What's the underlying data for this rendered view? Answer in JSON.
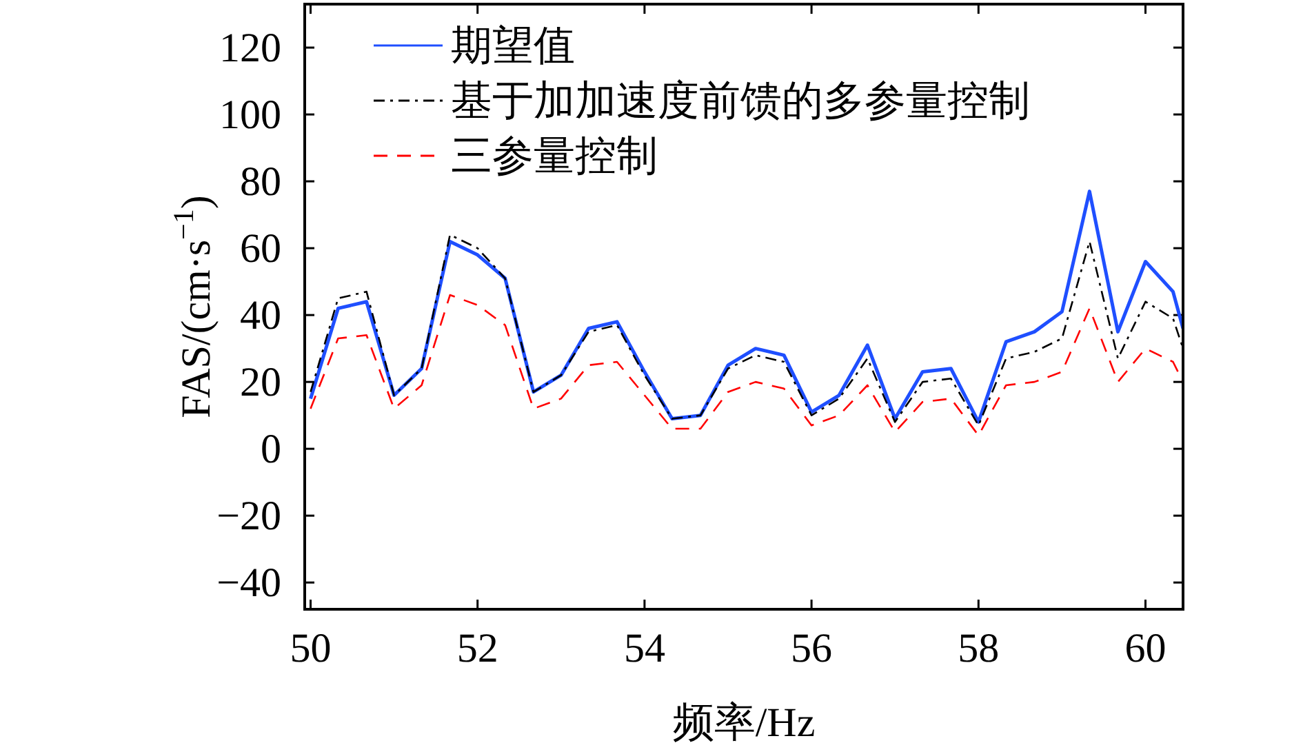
{
  "chart_data": {
    "type": "line",
    "xlabel": "频率/Hz",
    "ylabel": "FAS/(cm·s$^{−1}$)",
    "x": [
      50,
      50.33,
      50.67,
      51,
      51.33,
      51.67,
      52,
      52.33,
      52.67,
      53,
      53.33,
      53.67,
      54,
      54.33,
      54.67,
      55,
      55.33,
      55.67,
      56,
      56.33,
      56.67,
      57,
      57.33,
      57.67,
      58,
      58.33,
      58.67,
      59,
      59.33,
      59.67,
      60,
      60.33,
      60.45
    ],
    "series": [
      {
        "name": "期望值",
        "color": "#1f4fff",
        "line_style": "solid",
        "values": [
          15,
          42,
          44,
          16,
          24,
          62,
          58,
          51,
          17,
          22,
          36,
          38,
          23,
          9,
          10,
          25,
          30,
          28,
          11,
          16,
          31,
          9,
          23,
          24,
          8,
          32,
          35,
          41,
          77,
          35,
          56,
          47,
          36
        ]
      },
      {
        "name": "基于加加速度前馈的多参量控制",
        "color": "#000000",
        "line_style": "dashdot",
        "values": [
          17,
          45,
          47,
          16,
          24,
          64,
          60,
          51,
          17,
          22,
          35,
          37,
          22,
          9,
          10,
          24,
          28,
          26,
          10,
          15,
          27,
          8,
          20,
          21,
          7,
          27,
          29,
          33,
          62,
          27,
          44,
          39,
          30
        ]
      },
      {
        "name": "三参量控制",
        "color": "#ff0000",
        "line_style": "dashed",
        "values": [
          12,
          33,
          34,
          12,
          19,
          46,
          43,
          37,
          12,
          15,
          25,
          26,
          16,
          6,
          6,
          17,
          20,
          18,
          7,
          10,
          19,
          5,
          14,
          15,
          4,
          19,
          20,
          23,
          42,
          20,
          30,
          26,
          20
        ]
      }
    ],
    "xlim": [
      49.93,
      60.45
    ],
    "ylim": [
      -48,
      133
    ],
    "xticks": [
      50,
      52,
      54,
      56,
      58,
      60
    ],
    "yticks": [
      {
        "value": -40,
        "label": "−40"
      },
      {
        "value": -20,
        "label": "−20"
      },
      0,
      20,
      40,
      60,
      80,
      100,
      120
    ],
    "legend": "top left",
    "grid": false
  }
}
